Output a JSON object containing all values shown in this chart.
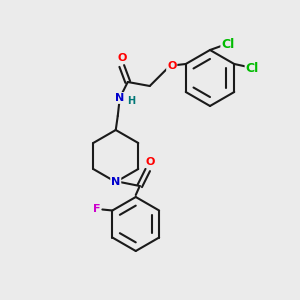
{
  "bg_color": "#ebebeb",
  "bond_color": "#1a1a1a",
  "atom_colors": {
    "O": "#ff0000",
    "N": "#0000cc",
    "Cl": "#00bb00",
    "F": "#cc00cc",
    "H": "#007777",
    "C": "#1a1a1a"
  },
  "font_size": 9,
  "figsize": [
    3.0,
    3.0
  ],
  "dpi": 100
}
